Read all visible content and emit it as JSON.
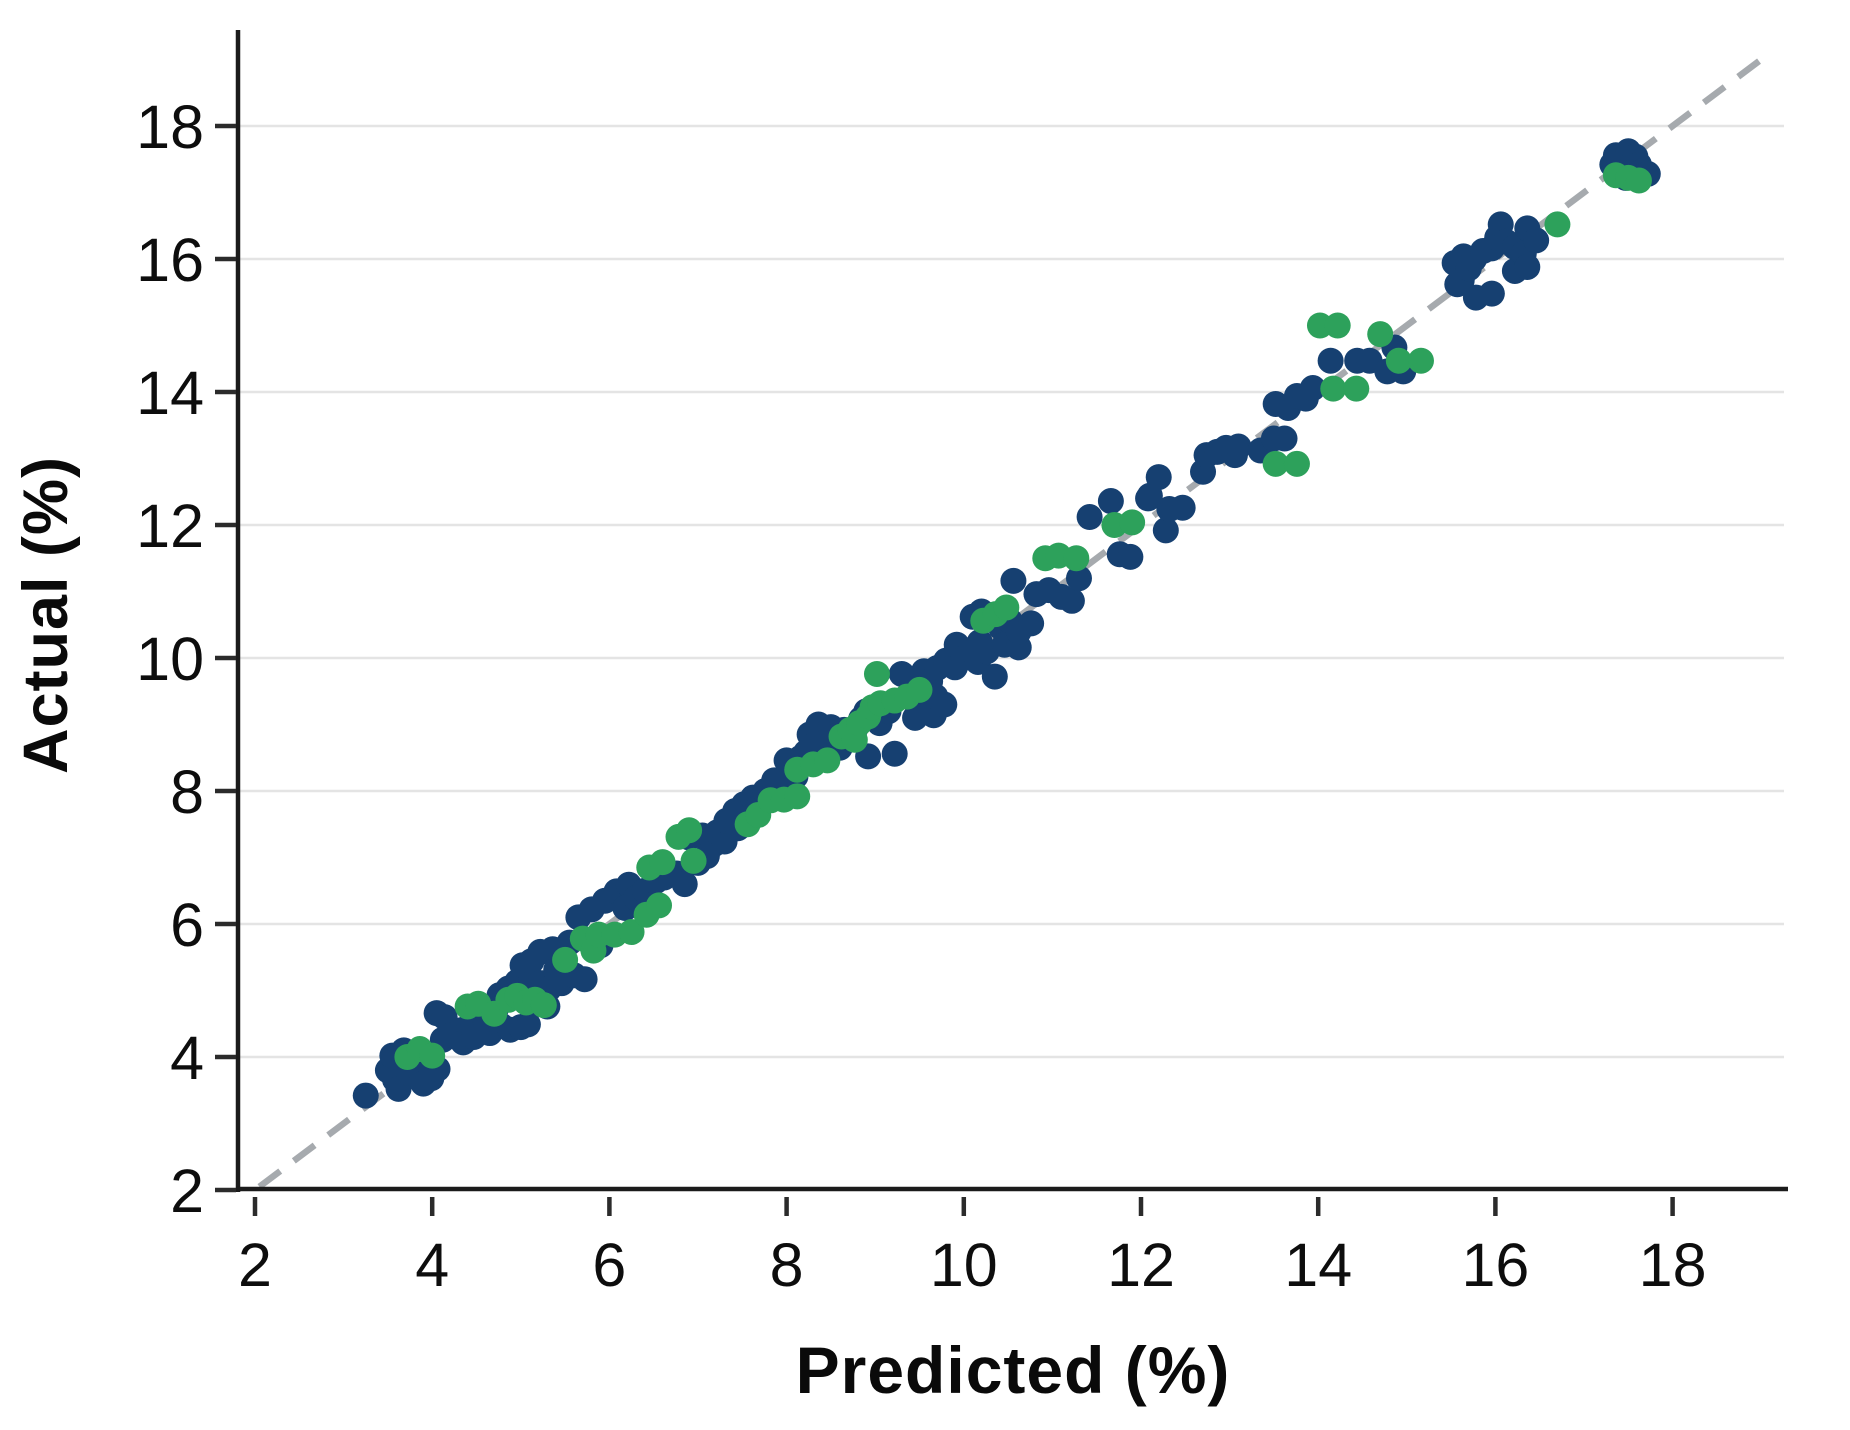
{
  "figure": {
    "background": "#ffffff"
  },
  "chart_data": {
    "type": "scatter",
    "title": "",
    "xlabel": "Predicted (%)",
    "ylabel": "Actual (%)",
    "xticks": [
      2,
      4,
      6,
      8,
      10,
      12,
      14,
      16,
      18
    ],
    "yticks": [
      2,
      4,
      6,
      8,
      10,
      12,
      14,
      16,
      18
    ],
    "xlim": [
      1.8,
      19.4
    ],
    "ylim": [
      2,
      19.45
    ],
    "grid": {
      "horizontal": true,
      "vertical": false,
      "color": "#e4e4e4"
    },
    "axis_color": "#1b1b1b",
    "tick_color": "#2b2b2b",
    "tick_label_color": "#0d0d0d",
    "legend": "none",
    "identity_line": {
      "style": "dashed",
      "color": "#a6aaae",
      "from": 2.05,
      "to": 19.05
    },
    "series": [
      {
        "name": "series_navy",
        "color": "#164071",
        "marker": "circle",
        "points": [
          [
            3.25,
            3.42
          ],
          [
            3.5,
            3.8
          ],
          [
            3.55,
            4.02
          ],
          [
            3.58,
            3.66
          ],
          [
            3.62,
            3.52
          ],
          [
            3.68,
            4.1
          ],
          [
            3.74,
            3.76
          ],
          [
            3.84,
            3.84
          ],
          [
            3.9,
            3.6
          ],
          [
            3.95,
            3.93
          ],
          [
            3.99,
            3.68
          ],
          [
            4.06,
            3.82
          ],
          [
            4.05,
            4.66
          ],
          [
            4.12,
            4.26
          ],
          [
            4.14,
            4.6
          ],
          [
            4.22,
            4.33
          ],
          [
            4.32,
            4.4
          ],
          [
            4.35,
            4.22
          ],
          [
            4.42,
            4.47
          ],
          [
            4.47,
            4.3
          ],
          [
            4.52,
            4.7
          ],
          [
            4.6,
            4.58
          ],
          [
            4.65,
            4.36
          ],
          [
            4.72,
            4.73
          ],
          [
            4.76,
            4.93
          ],
          [
            4.78,
            4.47
          ],
          [
            4.86,
            5.03
          ],
          [
            4.88,
            4.41
          ],
          [
            4.96,
            5.13
          ],
          [
            5.0,
            4.45
          ],
          [
            5.08,
            4.49
          ],
          [
            5.02,
            5.38
          ],
          [
            5.06,
            4.97
          ],
          [
            5.12,
            5.17
          ],
          [
            5.12,
            5.44
          ],
          [
            5.22,
            5.11
          ],
          [
            5.22,
            5.58
          ],
          [
            5.3,
            4.76
          ],
          [
            5.32,
            5.03
          ],
          [
            5.36,
            5.62
          ],
          [
            5.4,
            5.31
          ],
          [
            5.46,
            5.11
          ],
          [
            5.46,
            5.48
          ],
          [
            5.55,
            5.72
          ],
          [
            5.6,
            5.23
          ],
          [
            5.72,
            5.17
          ],
          [
            5.65,
            6.1
          ],
          [
            5.8,
            6.22
          ],
          [
            5.9,
            5.68
          ],
          [
            5.95,
            6.35
          ],
          [
            6.08,
            6.49
          ],
          [
            6.18,
            6.24
          ],
          [
            6.22,
            6.59
          ],
          [
            6.3,
            6.39
          ],
          [
            6.4,
            6.5
          ],
          [
            6.52,
            6.64
          ],
          [
            6.62,
            6.7
          ],
          [
            6.76,
            6.76
          ],
          [
            6.85,
            6.6
          ],
          [
            6.9,
            7.3
          ],
          [
            7.0,
            6.92
          ],
          [
            7.05,
            7.33
          ],
          [
            7.1,
            7.02
          ],
          [
            7.18,
            7.2
          ],
          [
            7.22,
            7.38
          ],
          [
            7.3,
            7.24
          ],
          [
            7.32,
            7.55
          ],
          [
            7.42,
            7.7
          ],
          [
            7.45,
            7.44
          ],
          [
            7.52,
            7.8
          ],
          [
            7.57,
            7.6
          ],
          [
            7.62,
            7.9
          ],
          [
            7.68,
            7.75
          ],
          [
            7.76,
            8.0
          ],
          [
            7.86,
            8.16
          ],
          [
            7.96,
            8.1
          ],
          [
            8.06,
            8.36
          ],
          [
            8.0,
            8.46
          ],
          [
            8.1,
            8.22
          ],
          [
            8.16,
            8.5
          ],
          [
            8.22,
            8.58
          ],
          [
            8.26,
            8.85
          ],
          [
            8.3,
            8.68
          ],
          [
            8.36,
            9.0
          ],
          [
            8.42,
            8.5
          ],
          [
            8.45,
            8.68
          ],
          [
            8.5,
            8.96
          ],
          [
            8.55,
            8.82
          ],
          [
            8.6,
            8.65
          ],
          [
            8.65,
            8.92
          ],
          [
            8.72,
            8.78
          ],
          [
            8.78,
            8.95
          ],
          [
            8.84,
            9.08
          ],
          [
            8.9,
            9.2
          ],
          [
            8.92,
            8.52
          ],
          [
            9.05,
            9.02
          ],
          [
            9.15,
            9.2
          ],
          [
            9.22,
            8.56
          ],
          [
            9.3,
            9.76
          ],
          [
            9.4,
            9.45
          ],
          [
            9.45,
            9.1
          ],
          [
            9.5,
            9.6
          ],
          [
            9.55,
            9.8
          ],
          [
            9.58,
            9.24
          ],
          [
            9.62,
            9.65
          ],
          [
            9.66,
            9.14
          ],
          [
            9.68,
            9.42
          ],
          [
            9.78,
            9.3
          ],
          [
            9.7,
            9.85
          ],
          [
            9.8,
            9.96
          ],
          [
            9.9,
            9.86
          ],
          [
            9.92,
            10.2
          ],
          [
            10.0,
            10.0
          ],
          [
            10.08,
            10.12
          ],
          [
            10.16,
            9.94
          ],
          [
            10.18,
            10.24
          ],
          [
            10.26,
            10.1
          ],
          [
            10.1,
            10.62
          ],
          [
            10.2,
            10.7
          ],
          [
            10.35,
            9.72
          ],
          [
            10.42,
            10.46
          ],
          [
            10.46,
            10.2
          ],
          [
            10.52,
            10.56
          ],
          [
            10.62,
            10.16
          ],
          [
            10.62,
            10.4
          ],
          [
            10.76,
            10.52
          ],
          [
            10.56,
            11.16
          ],
          [
            10.82,
            10.96
          ],
          [
            10.96,
            11.02
          ],
          [
            11.1,
            10.92
          ],
          [
            11.22,
            10.86
          ],
          [
            11.3,
            11.2
          ],
          [
            11.42,
            12.12
          ],
          [
            11.66,
            12.36
          ],
          [
            11.76,
            11.56
          ],
          [
            11.88,
            11.52
          ],
          [
            12.08,
            12.4
          ],
          [
            12.1,
            12.44
          ],
          [
            12.2,
            12.72
          ],
          [
            12.28,
            11.92
          ],
          [
            12.32,
            12.24
          ],
          [
            12.47,
            12.26
          ],
          [
            12.7,
            12.8
          ],
          [
            12.74,
            13.05
          ],
          [
            12.86,
            13.1
          ],
          [
            12.96,
            13.16
          ],
          [
            13.06,
            13.05
          ],
          [
            13.1,
            13.18
          ],
          [
            13.35,
            13.12
          ],
          [
            13.5,
            13.3
          ],
          [
            13.62,
            13.3
          ],
          [
            13.52,
            13.82
          ],
          [
            13.66,
            13.76
          ],
          [
            13.76,
            13.94
          ],
          [
            13.86,
            13.9
          ],
          [
            13.94,
            14.06
          ],
          [
            14.14,
            14.47
          ],
          [
            14.44,
            14.47
          ],
          [
            14.58,
            14.47
          ],
          [
            14.78,
            14.31
          ],
          [
            14.96,
            14.31
          ],
          [
            14.86,
            14.67
          ],
          [
            15.57,
            15.62
          ],
          [
            15.54,
            15.94
          ],
          [
            15.62,
            15.68
          ],
          [
            15.64,
            16.04
          ],
          [
            15.7,
            15.86
          ],
          [
            15.76,
            16.0
          ],
          [
            15.78,
            15.42
          ],
          [
            15.86,
            16.12
          ],
          [
            15.96,
            15.48
          ],
          [
            15.96,
            16.16
          ],
          [
            16.02,
            16.32
          ],
          [
            16.06,
            16.52
          ],
          [
            16.12,
            16.26
          ],
          [
            16.22,
            15.82
          ],
          [
            16.22,
            16.18
          ],
          [
            16.32,
            16.08
          ],
          [
            16.36,
            15.88
          ],
          [
            16.36,
            16.46
          ],
          [
            16.46,
            16.28
          ],
          [
            17.32,
            17.42
          ],
          [
            17.36,
            17.56
          ],
          [
            17.42,
            17.32
          ],
          [
            17.46,
            17.52
          ],
          [
            17.47,
            17.22
          ],
          [
            17.5,
            17.62
          ],
          [
            17.56,
            17.46
          ],
          [
            17.58,
            17.54
          ],
          [
            17.62,
            17.42
          ],
          [
            17.66,
            17.32
          ],
          [
            17.72,
            17.28
          ]
        ]
      },
      {
        "name": "series_green",
        "color": "#2da15b",
        "marker": "circle",
        "points": [
          [
            3.72,
            4.0
          ],
          [
            3.86,
            4.12
          ],
          [
            4.0,
            4.02
          ],
          [
            4.4,
            4.76
          ],
          [
            4.52,
            4.8
          ],
          [
            4.7,
            4.65
          ],
          [
            4.86,
            4.86
          ],
          [
            4.96,
            4.92
          ],
          [
            5.06,
            4.82
          ],
          [
            5.16,
            4.86
          ],
          [
            5.26,
            4.78
          ],
          [
            5.5,
            5.46
          ],
          [
            5.7,
            5.78
          ],
          [
            5.82,
            5.6
          ],
          [
            5.88,
            5.84
          ],
          [
            6.06,
            5.84
          ],
          [
            6.25,
            5.88
          ],
          [
            6.42,
            6.14
          ],
          [
            6.56,
            6.28
          ],
          [
            6.45,
            6.85
          ],
          [
            6.6,
            6.93
          ],
          [
            6.95,
            6.95
          ],
          [
            6.78,
            7.31
          ],
          [
            6.9,
            7.41
          ],
          [
            7.56,
            7.5
          ],
          [
            7.68,
            7.64
          ],
          [
            7.82,
            7.86
          ],
          [
            7.97,
            7.87
          ],
          [
            8.12,
            7.92
          ],
          [
            8.12,
            8.32
          ],
          [
            8.3,
            8.4
          ],
          [
            8.46,
            8.46
          ],
          [
            8.62,
            8.82
          ],
          [
            8.72,
            8.92
          ],
          [
            8.77,
            8.77
          ],
          [
            8.82,
            9.02
          ],
          [
            8.92,
            9.12
          ],
          [
            8.97,
            9.26
          ],
          [
            9.06,
            9.32
          ],
          [
            9.22,
            9.36
          ],
          [
            9.36,
            9.42
          ],
          [
            9.5,
            9.52
          ],
          [
            9.02,
            9.76
          ],
          [
            10.22,
            10.56
          ],
          [
            10.36,
            10.66
          ],
          [
            10.48,
            10.76
          ],
          [
            10.92,
            11.5
          ],
          [
            11.07,
            11.54
          ],
          [
            11.27,
            11.5
          ],
          [
            11.7,
            12.0
          ],
          [
            11.9,
            12.04
          ],
          [
            13.52,
            12.92
          ],
          [
            13.76,
            12.92
          ],
          [
            14.02,
            15.0
          ],
          [
            14.22,
            15.0
          ],
          [
            14.17,
            14.05
          ],
          [
            14.43,
            14.05
          ],
          [
            14.7,
            14.87
          ],
          [
            14.91,
            14.47
          ],
          [
            15.16,
            14.47
          ],
          [
            16.7,
            16.52
          ],
          [
            17.36,
            17.26
          ],
          [
            17.5,
            17.22
          ],
          [
            17.62,
            17.18
          ]
        ]
      }
    ]
  }
}
